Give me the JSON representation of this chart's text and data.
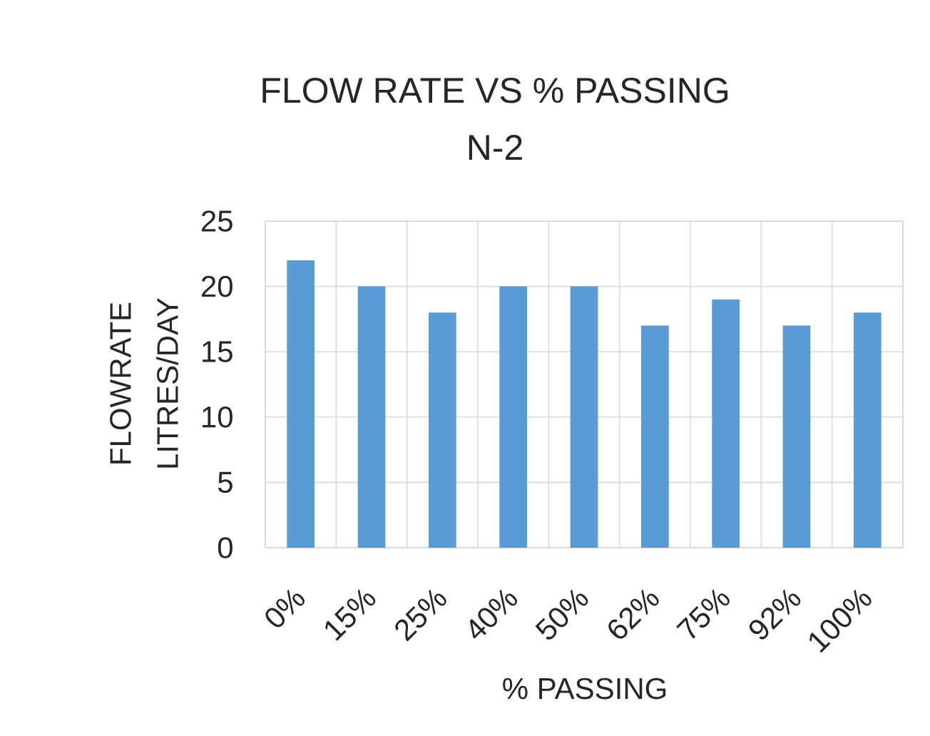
{
  "chart_data": {
    "type": "bar",
    "title": "FLOW RATE VS % PASSING",
    "subtitle": "N-2",
    "xlabel": "% PASSING",
    "ylabel": "FLOWRATE LITRES/DAY",
    "categories": [
      "0%",
      "15%",
      "25%",
      "40%",
      "50%",
      "62%",
      "75%",
      "92%",
      "100%"
    ],
    "values": [
      22,
      20,
      18,
      20,
      20,
      17,
      19,
      17,
      18
    ],
    "color": "#5b9bd5",
    "ylim": [
      0,
      25
    ],
    "yticks": [
      0,
      5,
      10,
      15,
      20,
      25
    ],
    "grid": true
  }
}
